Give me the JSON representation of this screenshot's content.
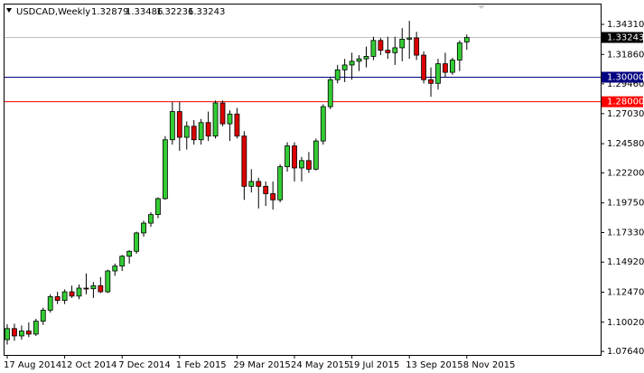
{
  "chart_data": {
    "type": "candlestick",
    "symbol": "USDCAD,Weekly",
    "categories": [
      "17 Aug 2014",
      null,
      null,
      null,
      null,
      null,
      null,
      null,
      "12 Oct 2014",
      null,
      null,
      null,
      null,
      null,
      null,
      null,
      "7 Dec 2014",
      null,
      null,
      null,
      null,
      null,
      null,
      null,
      "1 Feb 2015",
      null,
      null,
      null,
      null,
      null,
      null,
      null,
      "29 Mar 2015",
      null,
      null,
      null,
      null,
      null,
      null,
      null,
      "24 May 2015",
      null,
      null,
      null,
      null,
      null,
      null,
      null,
      "19 Jul 2015",
      null,
      null,
      null,
      null,
      null,
      null,
      null,
      "13 Sep 2015",
      null,
      null,
      null,
      null,
      null,
      null,
      null,
      "8 Nov 2015"
    ],
    "open": [
      1.086,
      1.095,
      1.089,
      1.093,
      1.0905,
      1.101,
      1.11,
      1.121,
      1.118,
      1.125,
      1.1215,
      1.128,
      1.1275,
      1.13,
      1.125,
      1.142,
      1.146,
      1.154,
      1.158,
      1.173,
      1.181,
      1.188,
      1.201,
      1.249,
      1.272,
      1.251,
      1.26,
      1.249,
      1.263,
      1.252,
      1.279,
      1.262,
      1.27,
      1.252,
      1.211,
      1.215,
      1.211,
      1.205,
      1.2,
      1.227,
      1.244,
      1.226,
      1.232,
      1.225,
      1.248,
      1.276,
      1.298,
      1.306,
      1.31,
      1.313,
      1.315,
      1.317,
      1.33,
      1.322,
      1.32,
      1.324,
      1.331,
      1.332,
      1.318,
      1.298,
      1.295,
      1.311,
      1.304,
      1.314,
      1.32879
    ],
    "high": [
      1.0985,
      1.099,
      1.0975,
      1.1,
      1.103,
      1.112,
      1.123,
      1.125,
      1.127,
      1.13,
      1.131,
      1.14,
      1.133,
      1.137,
      1.143,
      1.148,
      1.155,
      1.159,
      1.174,
      1.183,
      1.19,
      1.202,
      1.252,
      1.28,
      1.28,
      1.264,
      1.265,
      1.266,
      1.272,
      1.281,
      1.281,
      1.273,
      1.275,
      1.256,
      1.225,
      1.218,
      1.215,
      1.215,
      1.229,
      1.247,
      1.247,
      1.235,
      1.239,
      1.25,
      1.278,
      1.3,
      1.31,
      1.315,
      1.32,
      1.318,
      1.325,
      1.333,
      1.332,
      1.333,
      1.333,
      1.34,
      1.346,
      1.337,
      1.321,
      1.308,
      1.315,
      1.32,
      1.316,
      1.33,
      1.33486
    ],
    "low": [
      1.082,
      1.085,
      1.086,
      1.088,
      1.089,
      1.098,
      1.108,
      1.115,
      1.115,
      1.12,
      1.119,
      1.123,
      1.12,
      1.124,
      1.124,
      1.138,
      1.142,
      1.148,
      1.156,
      1.17,
      1.178,
      1.185,
      1.2,
      1.245,
      1.24,
      1.241,
      1.245,
      1.245,
      1.248,
      1.25,
      1.26,
      1.248,
      1.25,
      1.2,
      1.206,
      1.193,
      1.195,
      1.192,
      1.198,
      1.223,
      1.215,
      1.215,
      1.222,
      1.224,
      1.245,
      1.274,
      1.295,
      1.296,
      1.298,
      1.305,
      1.308,
      1.314,
      1.318,
      1.315,
      1.31,
      1.313,
      1.315,
      1.314,
      1.295,
      1.284,
      1.29,
      1.3,
      1.302,
      1.305,
      1.32236
    ],
    "close": [
      1.095,
      1.089,
      1.093,
      1.0905,
      1.101,
      1.11,
      1.121,
      1.118,
      1.125,
      1.1215,
      1.128,
      1.1275,
      1.13,
      1.125,
      1.142,
      1.146,
      1.154,
      1.158,
      1.173,
      1.181,
      1.188,
      1.201,
      1.249,
      1.272,
      1.251,
      1.26,
      1.249,
      1.263,
      1.252,
      1.279,
      1.262,
      1.27,
      1.252,
      1.211,
      1.215,
      1.211,
      1.205,
      1.2,
      1.227,
      1.244,
      1.226,
      1.232,
      1.225,
      1.248,
      1.276,
      1.298,
      1.306,
      1.31,
      1.313,
      1.315,
      1.317,
      1.33,
      1.322,
      1.32,
      1.324,
      1.331,
      1.332,
      1.318,
      1.298,
      1.295,
      1.311,
      1.304,
      1.314,
      1.328,
      1.33243
    ],
    "up_color": "#33cc33",
    "down_color": "#dd0000",
    "ylim": [
      1.0735,
      1.3593
    ],
    "yticks": [
      {
        "value": 1.0764,
        "label": "1.07640"
      },
      {
        "value": 1.1002,
        "label": "1.10020"
      },
      {
        "value": 1.1247,
        "label": "1.12470"
      },
      {
        "value": 1.1492,
        "label": "1.14920"
      },
      {
        "value": 1.1733,
        "label": "1.17330"
      },
      {
        "value": 1.1975,
        "label": "1.19750"
      },
      {
        "value": 1.222,
        "label": "1.22200"
      },
      {
        "value": 1.2458,
        "label": "1.24580"
      },
      {
        "value": 1.2703,
        "label": "1.27030"
      },
      {
        "value": 1.2946,
        "label": "1.29460"
      },
      {
        "value": 1.3186,
        "label": "1.31860"
      },
      {
        "value": 1.3431,
        "label": "1.34310"
      }
    ],
    "hlines": [
      {
        "value": 1.3,
        "label": "1.30000",
        "color": "#000080"
      },
      {
        "value": 1.28,
        "label": "1.28000",
        "color": "#ff0000"
      }
    ]
  }
}
